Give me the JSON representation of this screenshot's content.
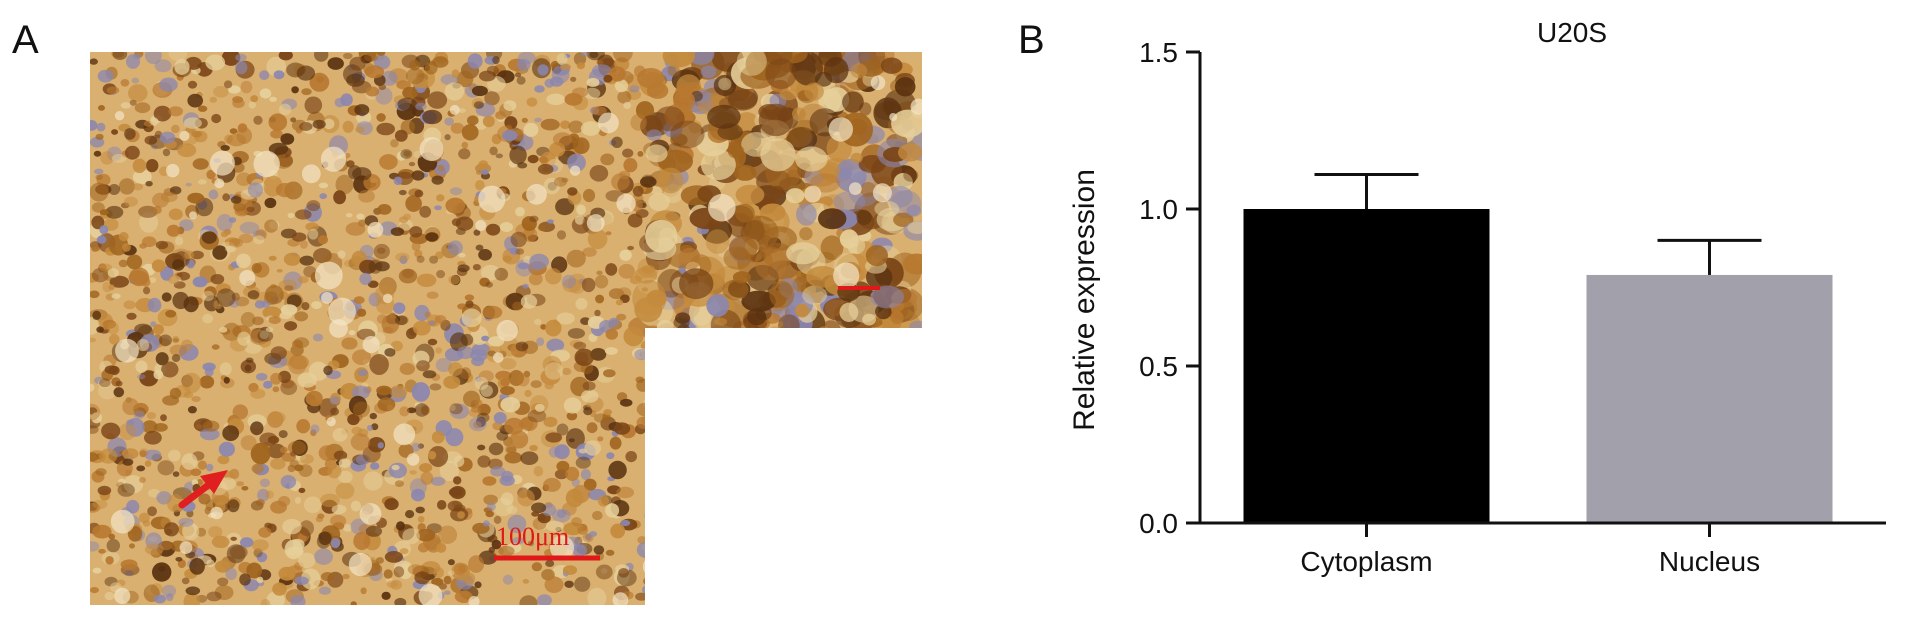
{
  "panels": {
    "a_label": "A",
    "b_label": "B"
  },
  "micrograph": {
    "scale_bar_label": "100μm",
    "colors": {
      "stain_dark": "#5a3210",
      "stain_mid": "#a0641e",
      "stain_light": "#d9b070",
      "counterstain": "#8a86b0",
      "arrow": "#e02020",
      "scale_bar": "#e01818"
    }
  },
  "chart_data": {
    "type": "bar",
    "title": "U20S",
    "ylabel": "Relative expression",
    "xlabel": "",
    "categories": [
      "Cytoplasm",
      "Nucleus"
    ],
    "values": [
      1.0,
      0.79
    ],
    "errors": [
      0.11,
      0.11
    ],
    "ylim": [
      0,
      1.5
    ],
    "yticks": [
      "0.0",
      "0.5",
      "1.0",
      "1.5"
    ],
    "bar_colors": [
      "#000000",
      "#a2a1ab"
    ],
    "grid": false,
    "legend": "none"
  }
}
